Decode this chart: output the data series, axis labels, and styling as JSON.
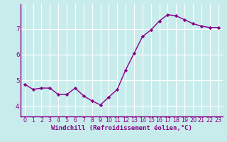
{
  "x": [
    0,
    1,
    2,
    3,
    4,
    5,
    6,
    7,
    8,
    9,
    10,
    11,
    12,
    13,
    14,
    15,
    16,
    17,
    18,
    19,
    20,
    21,
    22,
    23
  ],
  "y": [
    4.85,
    4.65,
    4.7,
    4.7,
    4.45,
    4.45,
    4.7,
    4.4,
    4.2,
    4.05,
    4.35,
    4.65,
    5.4,
    6.05,
    6.7,
    6.95,
    7.3,
    7.55,
    7.5,
    7.35,
    7.2,
    7.1,
    7.05,
    7.05
  ],
  "line_color": "#880088",
  "marker": "D",
  "markersize": 2.2,
  "linewidth": 1.0,
  "bg_color": "#c8ecec",
  "grid_color": "#ffffff",
  "xlabel": "Windchill (Refroidissement éolien,°C)",
  "xlabel_color": "#880088",
  "xlabel_fontsize": 6.5,
  "yticks": [
    4,
    5,
    6,
    7
  ],
  "xtick_labels": [
    "0",
    "1",
    "2",
    "3",
    "4",
    "5",
    "6",
    "7",
    "8",
    "9",
    "10",
    "11",
    "12",
    "13",
    "14",
    "15",
    "16",
    "17",
    "18",
    "19",
    "20",
    "21",
    "22",
    "23"
  ],
  "tick_fontsize": 5.8,
  "ylim": [
    3.6,
    7.95
  ],
  "xlim": [
    -0.5,
    23.5
  ]
}
